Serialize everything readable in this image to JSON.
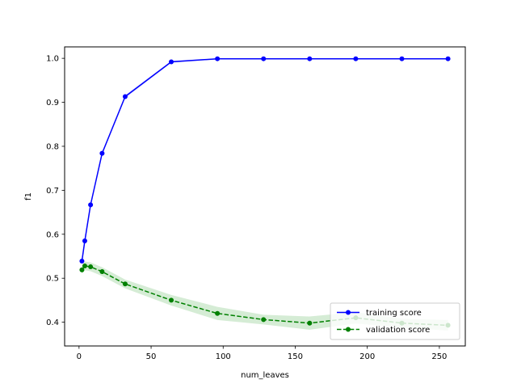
{
  "chart_data": {
    "type": "line",
    "xlabel": "num_leaves",
    "ylabel": "f1",
    "xlim": [
      -10,
      268
    ],
    "ylim": [
      0.346,
      1.026
    ],
    "x_ticks": [
      0,
      50,
      100,
      150,
      200,
      250
    ],
    "y_ticks": [
      0.4,
      0.5,
      0.6,
      0.7,
      0.8,
      0.9,
      1.0
    ],
    "x_tick_labels": [
      "0",
      "50",
      "100",
      "150",
      "200",
      "250"
    ],
    "y_tick_labels": [
      "0.4",
      "0.5",
      "0.6",
      "0.7",
      "0.8",
      "0.9",
      "1.0"
    ],
    "grid": false,
    "legend_position": "lower-right",
    "series": [
      {
        "name": "training score",
        "color": "#0000ff",
        "linestyle": "solid",
        "x": [
          2,
          4,
          8,
          16,
          32,
          64,
          96,
          128,
          160,
          192,
          224,
          256
        ],
        "values": [
          0.539,
          0.585,
          0.667,
          0.784,
          0.913,
          0.992,
          0.999,
          0.999,
          0.999,
          0.999,
          0.999,
          0.999
        ],
        "band_lower": [
          0.537,
          0.583,
          0.664,
          0.781,
          0.91,
          0.99,
          0.998,
          0.998,
          0.998,
          0.998,
          0.998,
          0.998
        ],
        "band_upper": [
          0.541,
          0.587,
          0.67,
          0.787,
          0.916,
          0.994,
          1.0,
          1.0,
          1.0,
          1.0,
          1.0,
          1.0
        ]
      },
      {
        "name": "validation score",
        "color": "#008000",
        "band_color": "#2ca02c",
        "linestyle": "dashed",
        "x": [
          2,
          4,
          8,
          16,
          32,
          64,
          96,
          128,
          160,
          192,
          224,
          256
        ],
        "values": [
          0.519,
          0.528,
          0.526,
          0.515,
          0.487,
          0.45,
          0.42,
          0.406,
          0.398,
          0.41,
          0.398,
          0.393
        ],
        "band_lower": [
          0.51,
          0.518,
          0.516,
          0.505,
          0.477,
          0.438,
          0.405,
          0.395,
          0.383,
          0.397,
          0.388,
          0.381
        ],
        "band_upper": [
          0.528,
          0.538,
          0.536,
          0.525,
          0.497,
          0.462,
          0.435,
          0.417,
          0.413,
          0.423,
          0.408,
          0.405
        ]
      }
    ]
  }
}
